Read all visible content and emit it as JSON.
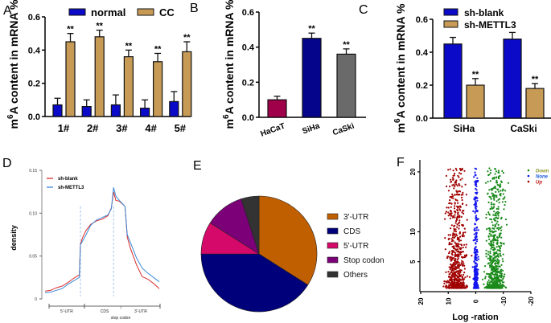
{
  "chart_data": [
    {
      "panel": "A",
      "type": "bar",
      "ylabel": "m6A content in mRNA %",
      "categories": [
        "1#",
        "2#",
        "3#",
        "4#",
        "5#"
      ],
      "series": [
        {
          "name": "normal",
          "color": "#0a0ac8",
          "values": [
            0.07,
            0.06,
            0.07,
            0.05,
            0.09
          ],
          "errors": [
            0.04,
            0.04,
            0.06,
            0.05,
            0.06
          ]
        },
        {
          "name": "CC",
          "color": "#c79a56",
          "values": [
            0.45,
            0.48,
            0.36,
            0.33,
            0.39
          ],
          "errors": [
            0.05,
            0.04,
            0.04,
            0.05,
            0.06
          ]
        }
      ],
      "significance": [
        "**",
        "**",
        "**",
        "**",
        "**"
      ],
      "yticks": [
        "0.0",
        "0.2",
        "0.4",
        "0.6"
      ],
      "ylim": [
        0,
        0.6
      ]
    },
    {
      "panel": "B",
      "type": "bar",
      "ylabel": "m6A content in mRNA %",
      "categories": [
        "HaCaT",
        "SiHa",
        "CaSki"
      ],
      "values": [
        0.1,
        0.45,
        0.36
      ],
      "errors": [
        0.02,
        0.03,
        0.03
      ],
      "colors": [
        "#a0004a",
        "#05058c",
        "#6a6a6a"
      ],
      "significance": [
        "",
        "**",
        "**"
      ],
      "yticks": [
        "0.0",
        "0.2",
        "0.4",
        "0.6"
      ],
      "ylim": [
        0,
        0.6
      ]
    },
    {
      "panel": "C",
      "type": "bar",
      "ylabel": "m6A content in mRNA %",
      "categories": [
        "SiHa",
        "CaSki"
      ],
      "series": [
        {
          "name": "sh-blank",
          "color": "#0a0ac8",
          "values": [
            0.45,
            0.48
          ],
          "errors": [
            0.04,
            0.04
          ]
        },
        {
          "name": "sh-METTL3",
          "color": "#c79a56",
          "values": [
            0.2,
            0.18
          ],
          "errors": [
            0.04,
            0.03
          ]
        }
      ],
      "significance": [
        "**",
        "**"
      ],
      "yticks": [
        "0.0",
        "0.2",
        "0.4",
        "0.6"
      ],
      "ylim": [
        0,
        0.6
      ]
    },
    {
      "panel": "D",
      "type": "line",
      "ylabel": "density",
      "yticks": [
        "0",
        "0.05",
        "0.10",
        "0.15"
      ],
      "ylim": [
        0,
        0.15
      ],
      "xlim": [
        0,
        1
      ],
      "regions": [
        "5'-UTR",
        "CDS",
        "3'-UTR"
      ],
      "annotation": "stop codon",
      "series": [
        {
          "name": "sh-blank",
          "color": "#d92b2b",
          "x": [
            0,
            0.05,
            0.1,
            0.15,
            0.2,
            0.25,
            0.3,
            0.31,
            0.33,
            0.36,
            0.4,
            0.45,
            0.5,
            0.55,
            0.58,
            0.6,
            0.62,
            0.65,
            0.7,
            0.72,
            0.75,
            0.8,
            0.85,
            0.9,
            0.95,
            1.0
          ],
          "y": [
            0.009,
            0.01,
            0.013,
            0.015,
            0.019,
            0.024,
            0.028,
            0.064,
            0.072,
            0.08,
            0.087,
            0.091,
            0.093,
            0.097,
            0.106,
            0.125,
            0.115,
            0.114,
            0.108,
            0.072,
            0.058,
            0.04,
            0.026,
            0.023,
            0.018,
            0.012
          ]
        },
        {
          "name": "sh-METTL3",
          "color": "#3a8ad8",
          "x": [
            0,
            0.05,
            0.1,
            0.15,
            0.2,
            0.25,
            0.3,
            0.31,
            0.33,
            0.36,
            0.4,
            0.45,
            0.5,
            0.55,
            0.58,
            0.6,
            0.62,
            0.65,
            0.7,
            0.72,
            0.75,
            0.8,
            0.85,
            0.9,
            0.95,
            1.0
          ],
          "y": [
            0.007,
            0.008,
            0.01,
            0.012,
            0.017,
            0.021,
            0.025,
            0.063,
            0.068,
            0.075,
            0.086,
            0.092,
            0.095,
            0.098,
            0.105,
            0.13,
            0.12,
            0.115,
            0.108,
            0.075,
            0.065,
            0.048,
            0.036,
            0.03,
            0.025,
            0.02
          ]
        }
      ],
      "vlines": [
        0.31,
        0.6
      ]
    },
    {
      "panel": "E",
      "type": "pie",
      "labels": [
        "3'-UTR",
        "CDS",
        "5'-UTR",
        "Stop codon",
        "Others"
      ],
      "values": [
        34,
        41,
        9,
        11,
        5
      ],
      "colors": [
        "#c05f00",
        "#00007a",
        "#d5096a",
        "#7c0078",
        "#333333"
      ]
    },
    {
      "panel": "F",
      "type": "scatter",
      "xlabel": "Log -ration",
      "xticks": [
        "20",
        "10",
        "0",
        "-10",
        "-20"
      ],
      "yticks": [
        "5",
        "10",
        "20"
      ],
      "xlim": [
        20,
        -20
      ],
      "ylim": [
        0,
        22
      ],
      "legend": [
        {
          "name": "Down",
          "color": "#1a8a1a",
          "text_color": "#8a9a2a"
        },
        {
          "name": "None",
          "color": "#1515ee",
          "text_color": "#1a5ad8"
        },
        {
          "name": "Up",
          "color": "#a00000",
          "text_color": "#c01010"
        }
      ]
    }
  ],
  "panel_labels": [
    "A",
    "B",
    "C",
    "D",
    "E",
    "F"
  ]
}
